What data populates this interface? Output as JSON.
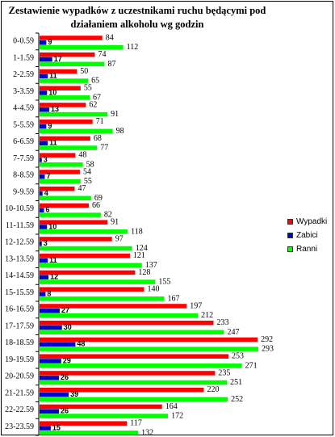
{
  "chart_data": {
    "type": "bar",
    "orientation": "horizontal",
    "title_line1": "Zestawienie wypadków z uczestnikami ruchu będącymi pod",
    "title_line2": "działaniem alkoholu wg godzin",
    "xlim": [
      0,
      300
    ],
    "legend_position": "right",
    "categories": [
      "0-0.59",
      "1-1.59",
      "2-2.59",
      "3-3.59",
      "4-4.59",
      "5-5.59",
      "6-6.59",
      "7-7.59",
      "8-8.59",
      "9-9.59",
      "10-10.59",
      "11-11.59",
      "12-12.59",
      "13-13.59",
      "14-14.59",
      "15-15.59",
      "16-16.59",
      "17-17.59",
      "18-18.59",
      "19-19.59",
      "20-20.59",
      "21-21.59",
      "22-22.59",
      "23-23.59"
    ],
    "series": [
      {
        "name": "Wypadki",
        "color": "#ff0000",
        "values": [
          84,
          74,
          50,
          55,
          62,
          71,
          68,
          48,
          54,
          47,
          66,
          91,
          97,
          121,
          128,
          140,
          197,
          233,
          292,
          253,
          235,
          220,
          164,
          117
        ]
      },
      {
        "name": "Zabici",
        "color": "#0000cc",
        "values": [
          9,
          17,
          11,
          10,
          13,
          9,
          11,
          3,
          7,
          4,
          6,
          10,
          3,
          11,
          12,
          8,
          27,
          30,
          48,
          29,
          26,
          39,
          26,
          15
        ]
      },
      {
        "name": "Ranni",
        "color": "#00ff00",
        "values": [
          112,
          87,
          65,
          67,
          91,
          98,
          77,
          58,
          55,
          69,
          82,
          118,
          124,
          137,
          155,
          167,
          212,
          247,
          293,
          271,
          251,
          252,
          172,
          132
        ]
      }
    ]
  }
}
